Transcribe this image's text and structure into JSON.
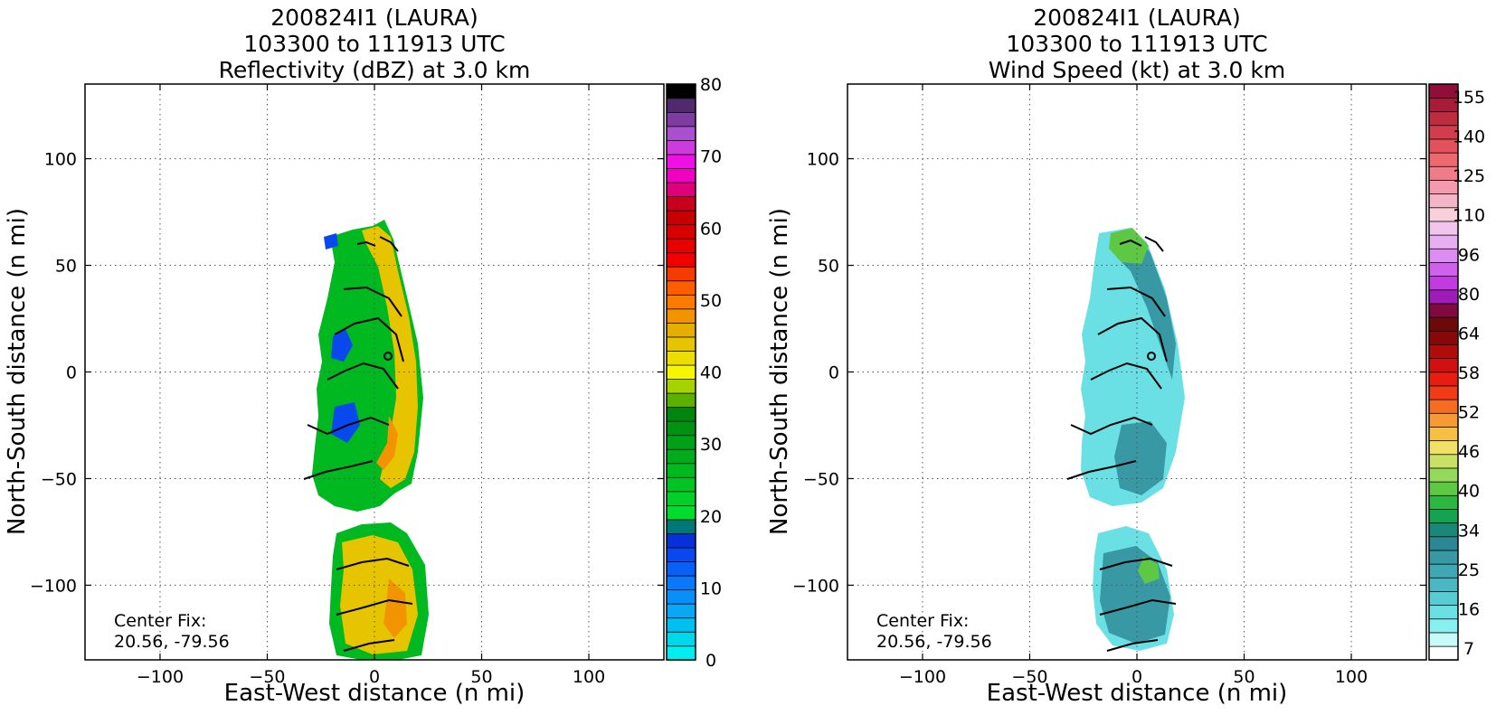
{
  "chart_data": [
    {
      "type": "heatmap",
      "title_lines": [
        "200824I1 (LAURA)",
        "103300 to 111913 UTC",
        "Reflectivity (dBZ) at 3.0 km"
      ],
      "xlabel": "East-West distance (n mi)",
      "ylabel": "North-South distance (n mi)",
      "xlim": [
        -135,
        135
      ],
      "ylim": [
        -135,
        135
      ],
      "xticks": [
        -100,
        -50,
        0,
        50,
        100
      ],
      "yticks": [
        -100,
        -50,
        0,
        50,
        100
      ],
      "grid": true,
      "annotation_lines": [
        "Center Fix:",
        "20.56, -79.56"
      ],
      "field": "reflectivity",
      "colorbar": {
        "min": 0,
        "max": 80,
        "ticks": [
          0,
          10,
          20,
          30,
          40,
          50,
          60,
          70,
          80
        ],
        "colors": [
          "#00eef0",
          "#00d8ea",
          "#00c0f0",
          "#0aa8f4",
          "#0890f8",
          "#0a78f8",
          "#0860f6",
          "#0848ee",
          "#0830d8",
          "#007878",
          "#00dd2e",
          "#00d028",
          "#00c423",
          "#00b81f",
          "#00ac1b",
          "#00a017",
          "#009313",
          "#00860f",
          "#5cb000",
          "#a6d200",
          "#f6f600",
          "#eedd00",
          "#e6c400",
          "#e6ae00",
          "#f29400",
          "#fc7a00",
          "#fd5e00",
          "#f43c00",
          "#f20000",
          "#e80000",
          "#d80000",
          "#c60000",
          "#c8001e",
          "#e0007c",
          "#f000c0",
          "#ee10e4",
          "#cc3cdc",
          "#a850d0",
          "#7c3ca0",
          "#502a6c",
          "#000000"
        ]
      }
    },
    {
      "type": "heatmap",
      "title_lines": [
        "200824I1 (LAURA)",
        "103300 to 111913 UTC",
        "Wind Speed (kt) at 3.0 km"
      ],
      "xlabel": "East-West distance (n mi)",
      "ylabel": "North-South distance (n mi)",
      "xlim": [
        -135,
        135
      ],
      "ylim": [
        -135,
        135
      ],
      "xticks": [
        -100,
        -50,
        0,
        50,
        100
      ],
      "yticks": [
        -100,
        -50,
        0,
        50,
        100
      ],
      "grid": true,
      "annotation_lines": [
        "Center Fix:",
        "20.56, -79.56"
      ],
      "field": "wind_speed",
      "colorbar": {
        "ticks": [
          "7",
          "16",
          "25",
          "34",
          "40",
          "46",
          "52",
          "58",
          "64",
          "80",
          "96",
          "110",
          "125",
          "140",
          "155"
        ],
        "colors": [
          "#ffffff",
          "#c6fbf8",
          "#88f0ee",
          "#6ae0e4",
          "#58ccd4",
          "#4ab8c4",
          "#40a8b4",
          "#3898a4",
          "#2a8894",
          "#1a8878",
          "#14a450",
          "#2cb840",
          "#5ec844",
          "#94d85c",
          "#c8e064",
          "#f0e068",
          "#f6c044",
          "#f69a36",
          "#f66c22",
          "#f03c16",
          "#e81c10",
          "#d21010",
          "#b00c0c",
          "#880808",
          "#6c0a0a",
          "#800a40",
          "#a01cb8",
          "#c03ce0",
          "#d060ee",
          "#dc8cf2",
          "#e8aef2",
          "#f2c6ec",
          "#f8d0dc",
          "#f6b4c8",
          "#f49aac",
          "#f07c88",
          "#ee6870",
          "#e4505c",
          "#d23c4c",
          "#be2c40",
          "#a81c3a",
          "#900e38"
        ]
      }
    }
  ]
}
